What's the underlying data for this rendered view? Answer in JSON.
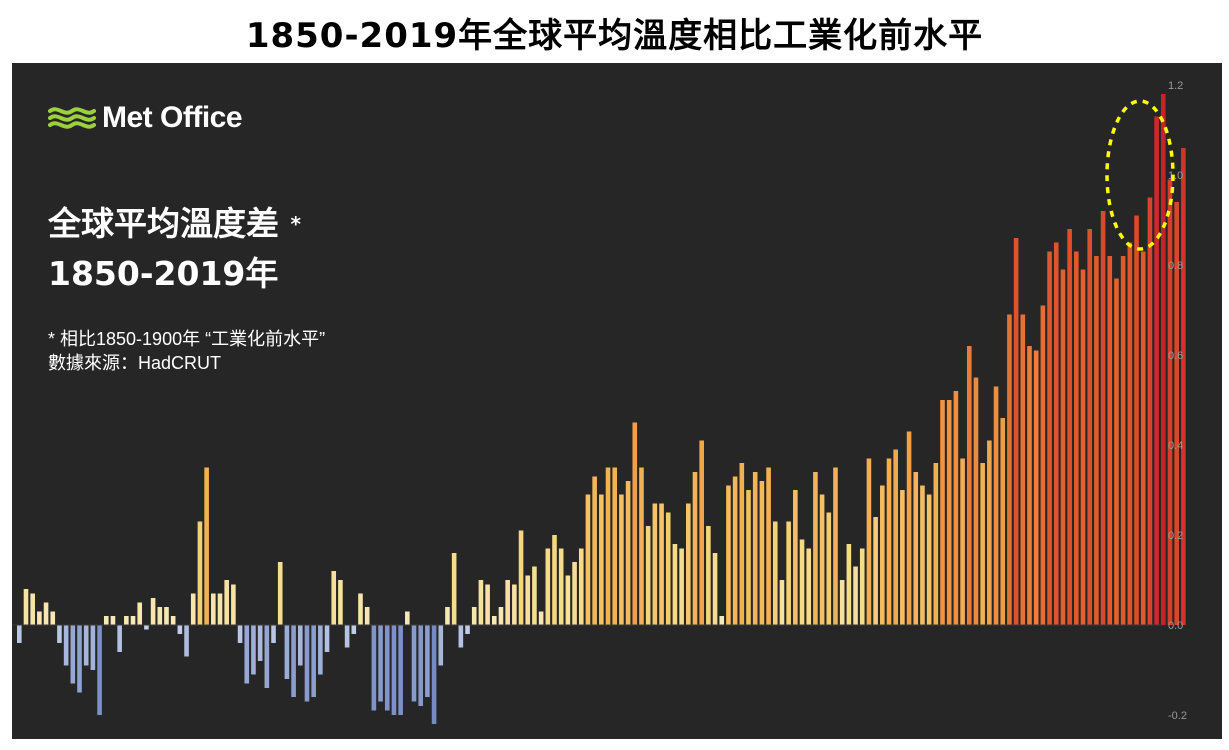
{
  "title": "1850-2019年全球平均溫度相比工業化前水平",
  "panel": {
    "logo_text": "Met Office",
    "heading_line1": "全球平均溫度差",
    "heading_star": "*",
    "heading_line2": "1850-2019年",
    "note_line1": " * 相比1850-1900年 “工業化前水平”",
    "note_line2": "數據來源：HadCRUT"
  },
  "colors": {
    "background": "#262626",
    "highlight_ellipse": "#ffff00"
  },
  "chart_data": {
    "type": "bar",
    "x_start": 1850,
    "x_end": 2019,
    "ylim": [
      -0.2,
      1.2
    ],
    "yticks": [
      "1.2",
      "1.0",
      "0.8",
      "0.6",
      "0.4",
      "0.2",
      "0.0",
      "-0.2"
    ],
    "ytick_values": [
      1.2,
      1.0,
      0.8,
      0.6,
      0.4,
      0.2,
      0.0,
      -0.2
    ],
    "annotation": "dotted yellow ellipse highlighting 2014-2019",
    "values": [
      -0.04,
      0.08,
      0.07,
      0.03,
      0.05,
      0.03,
      -0.04,
      -0.09,
      -0.13,
      -0.15,
      -0.09,
      -0.1,
      -0.2,
      0.02,
      0.02,
      -0.06,
      0.02,
      0.02,
      0.05,
      -0.01,
      0.06,
      0.04,
      0.04,
      0.02,
      -0.02,
      -0.07,
      0.07,
      0.23,
      0.35,
      0.07,
      0.07,
      0.1,
      0.09,
      -0.04,
      -0.13,
      -0.11,
      -0.08,
      -0.14,
      -0.04,
      0.14,
      -0.12,
      -0.16,
      -0.09,
      -0.17,
      -0.16,
      -0.11,
      -0.06,
      0.12,
      0.1,
      -0.05,
      -0.02,
      0.07,
      0.04,
      -0.19,
      -0.17,
      -0.19,
      -0.2,
      -0.2,
      0.03,
      -0.17,
      -0.18,
      -0.16,
      -0.22,
      -0.09,
      0.04,
      0.16,
      -0.05,
      -0.02,
      0.04,
      0.1,
      0.09,
      0.02,
      0.04,
      0.1,
      0.09,
      0.21,
      0.11,
      0.13,
      0.03,
      0.17,
      0.2,
      0.17,
      0.11,
      0.14,
      0.17,
      0.29,
      0.33,
      0.29,
      0.35,
      0.35,
      0.29,
      0.32,
      0.45,
      0.35,
      0.22,
      0.27,
      0.27,
      0.25,
      0.18,
      0.17,
      0.27,
      0.34,
      0.41,
      0.22,
      0.16,
      0.02,
      0.31,
      0.33,
      0.36,
      0.3,
      0.34,
      0.32,
      0.35,
      0.23,
      0.1,
      0.23,
      0.3,
      0.19,
      0.17,
      0.34,
      0.29,
      0.25,
      0.35,
      0.1,
      0.18,
      0.13,
      0.17,
      0.37,
      0.24,
      0.31,
      0.37,
      0.39,
      0.3,
      0.43,
      0.34,
      0.31,
      0.29,
      0.36,
      0.5,
      0.5,
      0.52,
      0.37,
      0.62,
      0.55,
      0.36,
      0.41,
      0.53,
      0.46,
      0.69,
      0.86,
      0.69,
      0.62,
      0.61,
      0.71,
      0.83,
      0.85,
      0.79,
      0.88,
      0.83,
      0.79,
      0.88,
      0.82,
      0.92,
      0.82,
      0.77,
      0.82,
      0.85,
      0.91,
      0.83,
      0.95,
      1.13,
      1.18,
      0.99,
      0.94,
      1.06
    ]
  }
}
